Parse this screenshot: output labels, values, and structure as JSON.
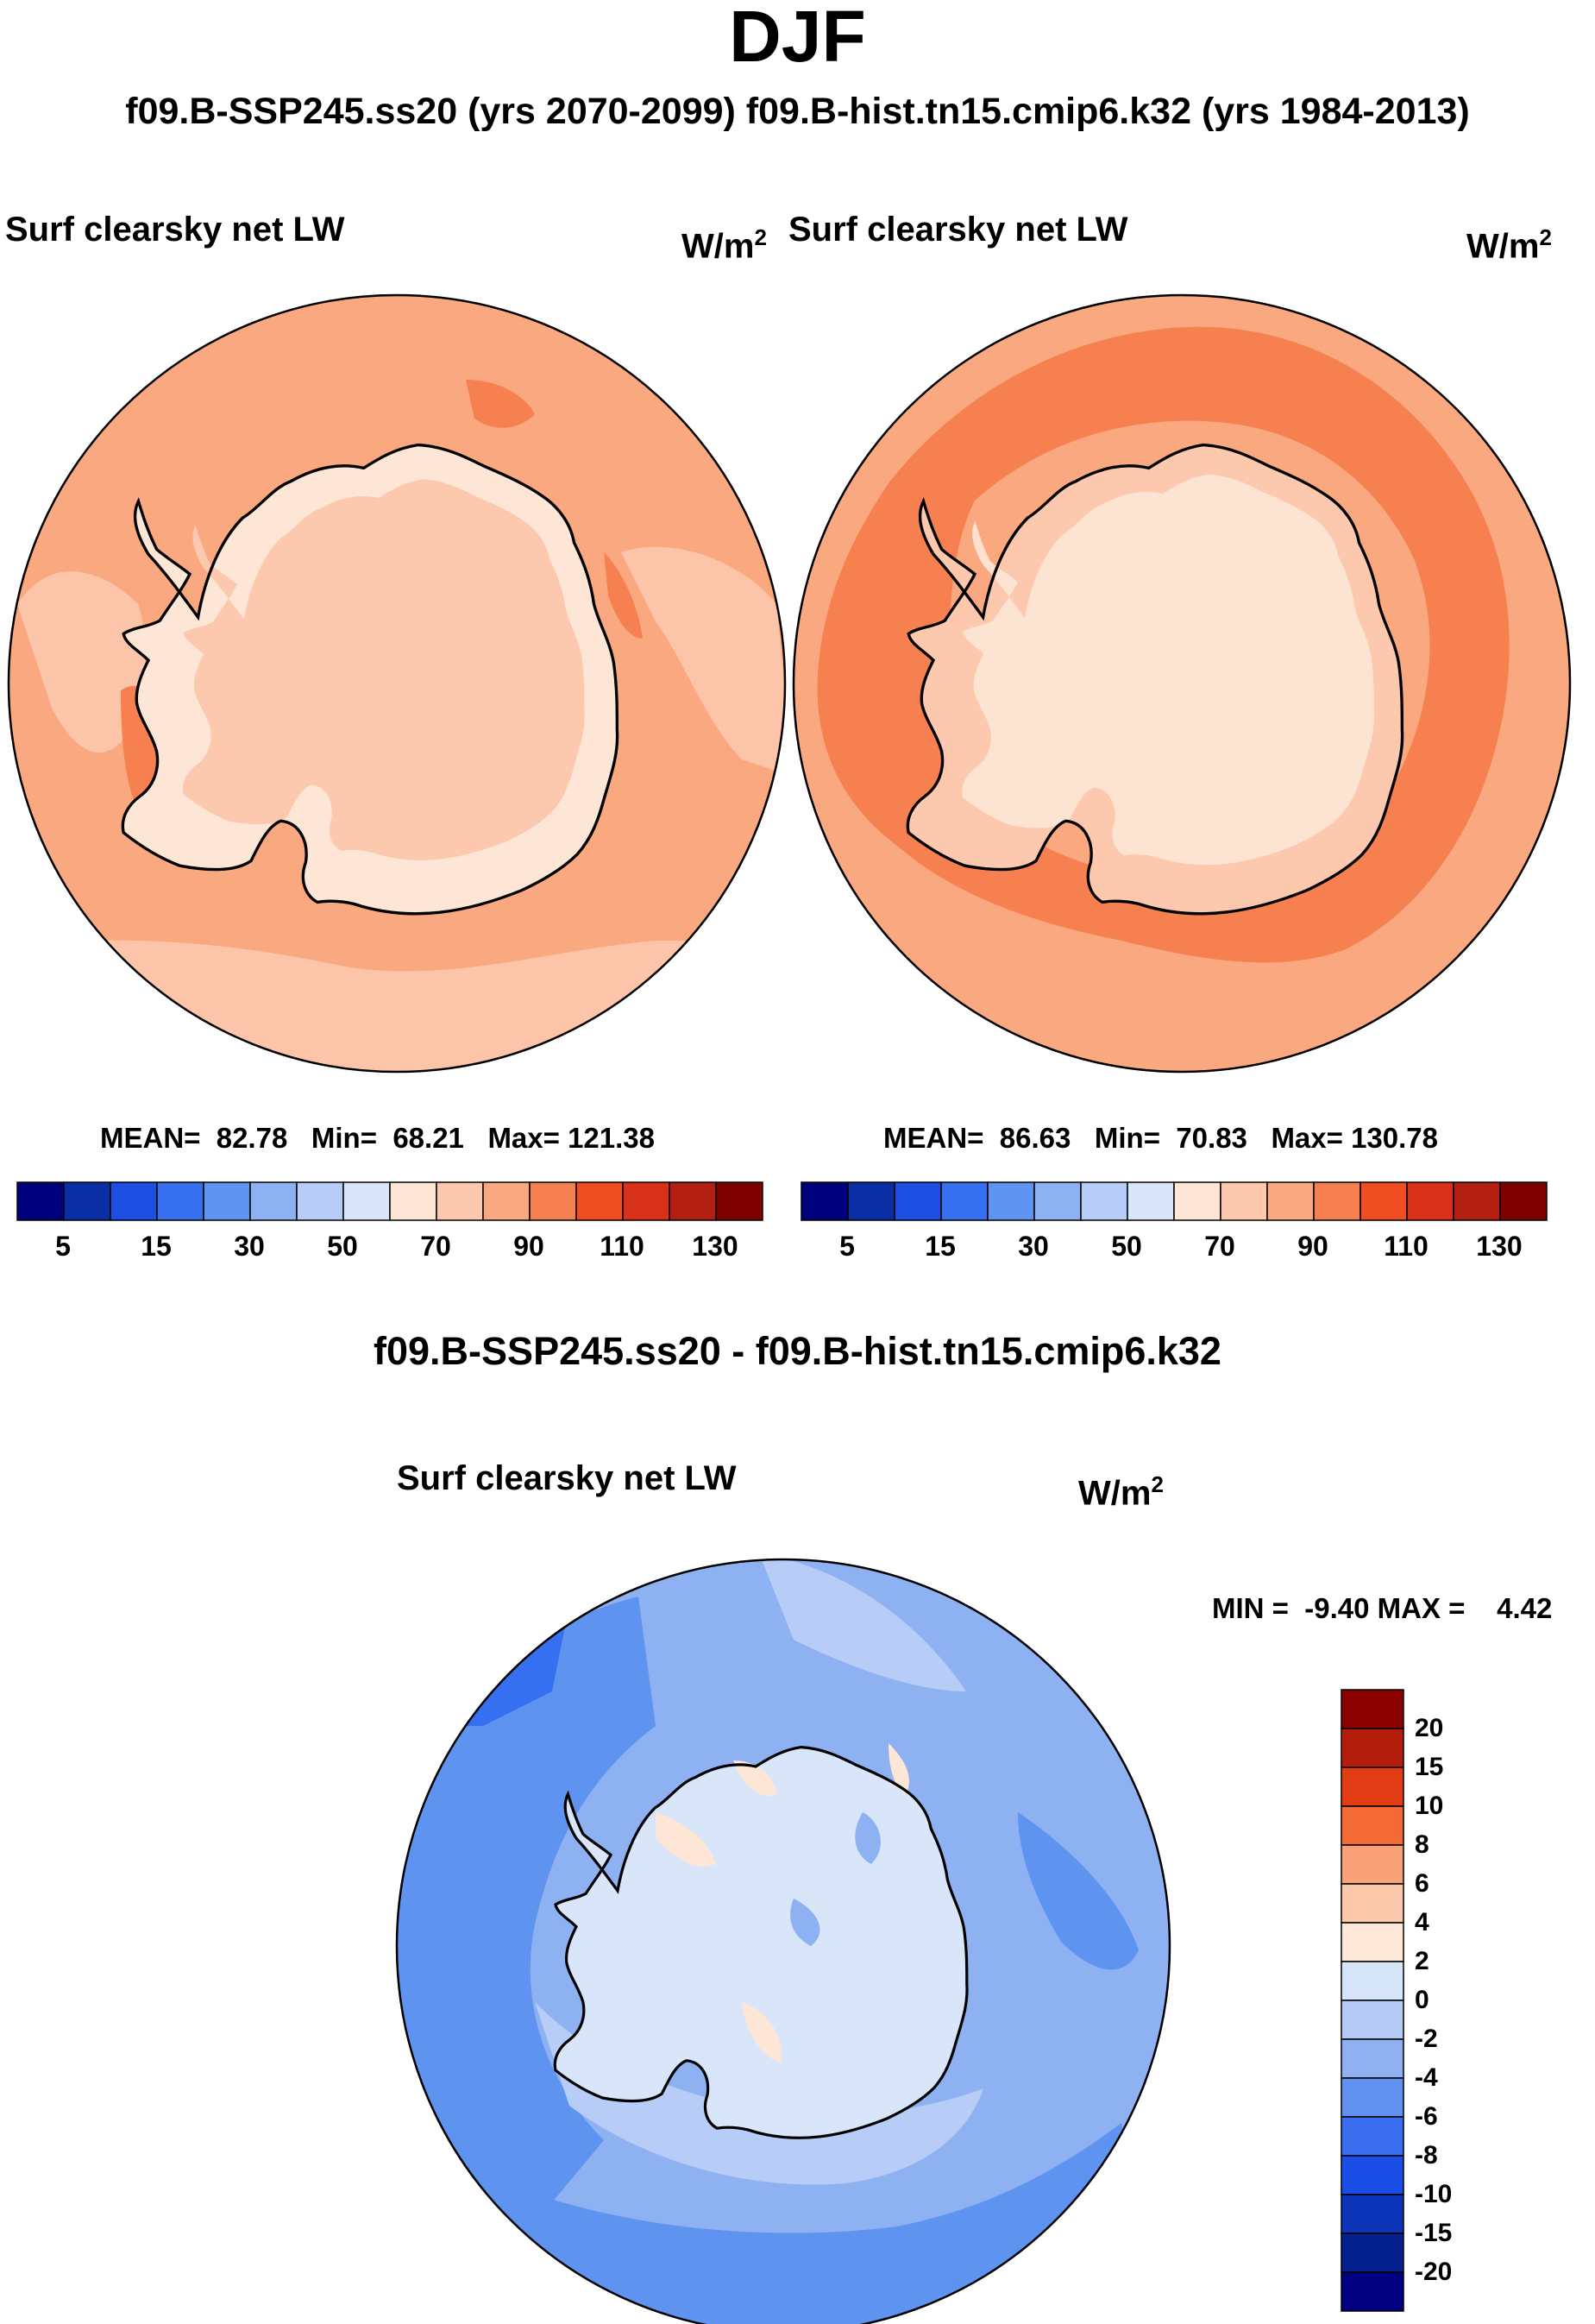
{
  "title": "DJF",
  "run_titles": "f09.B-SSP245.ss20 (yrs 2070-2099)  f09.B-hist.tn15.cmip6.k32 (yrs 1984-2013)",
  "panels": [
    {
      "id": "ssp245",
      "variable": "Surf clearsky net LW",
      "units_base": "W/m",
      "units_exp": "2",
      "mean_label": "MEAN=",
      "mean": "82.78",
      "min_label": "Min=",
      "min": "68.21",
      "max_label": "Max=",
      "max": "121.38"
    },
    {
      "id": "hist",
      "variable": "Surf clearsky net LW",
      "units_base": "W/m",
      "units_exp": "2",
      "mean_label": "MEAN=",
      "mean": "86.63",
      "min_label": "Min=",
      "min": "70.83",
      "max_label": "Max=",
      "max": "130.78"
    }
  ],
  "abs_colorbar": {
    "colors": [
      "#00007f",
      "#0a2fa5",
      "#1d4fe0",
      "#3670f0",
      "#5f93f0",
      "#8eb1f2",
      "#b7ccf6",
      "#d9e6fa",
      "#fde6d6",
      "#fcc8ae",
      "#f9a880",
      "#f6804f",
      "#ef4e22",
      "#d8311a",
      "#b31f12",
      "#7f0000"
    ],
    "tick_labels": [
      "5",
      "15",
      "30",
      "50",
      "70",
      "90",
      "110",
      "130"
    ]
  },
  "difference": {
    "title": "f09.B-SSP245.ss20 - f09.B-hist.tn15.cmip6.k32",
    "variable": "Surf clearsky net LW",
    "units_base": "W/m",
    "units_exp": "2",
    "min_label": "MIN =",
    "min": "-9.40",
    "max_label": "MAX =",
    "max": "4.42",
    "colorbar": {
      "colors_top_to_bottom": [
        "#8a0000",
        "#b21d0c",
        "#e23c14",
        "#f46a36",
        "#f9a27a",
        "#fcc9ad",
        "#fde8d9",
        "#d6e6f8",
        "#b5cbf5",
        "#8fb1f2",
        "#6090f0",
        "#3a6df0",
        "#1b4ee6",
        "#0b34b8",
        "#05208f",
        "#000080"
      ],
      "tick_labels": [
        "20",
        "15",
        "10",
        "8",
        "6",
        "4",
        "2",
        "0",
        "-2",
        "-4",
        "-6",
        "-8",
        "-10",
        "-15",
        "-20"
      ]
    }
  }
}
